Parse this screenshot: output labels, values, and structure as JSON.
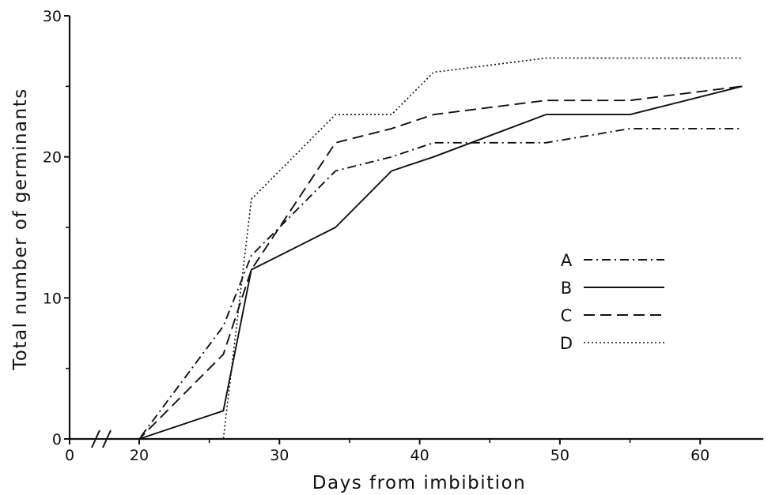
{
  "chart_data": {
    "type": "line",
    "title": "",
    "xlabel": "Days from imbibition",
    "ylabel": "Total number of germinants",
    "xlim": [
      0,
      63
    ],
    "ylim": [
      0,
      30
    ],
    "x_axis_break": true,
    "x_ticks": [
      0,
      20,
      30,
      40,
      50,
      60
    ],
    "x_tick_labels": [
      "0",
      "20",
      "30",
      "40",
      "50",
      "60"
    ],
    "y_ticks": [
      0,
      10,
      20,
      30
    ],
    "y_tick_labels": [
      "0",
      "10",
      "20",
      "30"
    ],
    "grid": false,
    "legend_position": "right",
    "series": [
      {
        "name": "A",
        "line_style": "dash-dot",
        "color": "#111111",
        "points": [
          [
            0,
            0
          ],
          [
            20,
            0
          ],
          [
            26,
            8
          ],
          [
            28,
            13
          ],
          [
            34,
            19
          ],
          [
            38,
            20
          ],
          [
            41,
            21
          ],
          [
            49,
            21
          ],
          [
            55,
            22
          ],
          [
            63,
            22
          ]
        ]
      },
      {
        "name": "B",
        "line_style": "solid",
        "color": "#111111",
        "points": [
          [
            0,
            0
          ],
          [
            20,
            0
          ],
          [
            26,
            2
          ],
          [
            28,
            12
          ],
          [
            34,
            15
          ],
          [
            38,
            19
          ],
          [
            41,
            20
          ],
          [
            49,
            23
          ],
          [
            55,
            23
          ],
          [
            63,
            25
          ]
        ]
      },
      {
        "name": "C",
        "line_style": "dashed",
        "color": "#111111",
        "points": [
          [
            0,
            0
          ],
          [
            20,
            0
          ],
          [
            26,
            6
          ],
          [
            28,
            12
          ],
          [
            34,
            21
          ],
          [
            38,
            22
          ],
          [
            41,
            23
          ],
          [
            49,
            24
          ],
          [
            55,
            24
          ],
          [
            63,
            25
          ]
        ]
      },
      {
        "name": "D",
        "line_style": "dotted",
        "color": "#111111",
        "points": [
          [
            0,
            0
          ],
          [
            20,
            0
          ],
          [
            26,
            0
          ],
          [
            28,
            17
          ],
          [
            34,
            23
          ],
          [
            38,
            23
          ],
          [
            41,
            26
          ],
          [
            49,
            27
          ],
          [
            55,
            27
          ],
          [
            63,
            27
          ]
        ]
      }
    ]
  }
}
